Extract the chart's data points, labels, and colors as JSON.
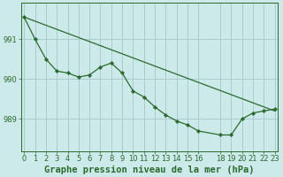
{
  "title": "Graphe pression niveau de la mer (hPa)",
  "background_color": "#cceaea",
  "grid_color": "#aacccc",
  "line_color": "#2d6a2d",
  "marker_color": "#2d6a2d",
  "trend_line": {
    "x": [
      0,
      23
    ],
    "y": [
      991.55,
      989.2
    ]
  },
  "wavy_line": {
    "x": [
      0,
      1,
      2,
      3,
      4,
      5,
      6,
      7,
      8,
      9,
      10,
      11,
      12,
      13,
      14,
      15,
      16,
      18,
      19,
      20,
      21,
      22,
      23
    ],
    "y": [
      991.55,
      991.0,
      990.5,
      990.2,
      990.15,
      990.05,
      990.1,
      990.3,
      990.4,
      990.15,
      989.7,
      989.55,
      989.3,
      989.1,
      988.95,
      988.85,
      988.7,
      988.6,
      988.6,
      989.0,
      989.15,
      989.2,
      989.25
    ]
  },
  "ylim": [
    988.2,
    991.9
  ],
  "yticks": [
    989,
    990,
    991
  ],
  "xticks": [
    0,
    1,
    2,
    3,
    4,
    5,
    6,
    7,
    8,
    9,
    10,
    11,
    12,
    13,
    14,
    15,
    16,
    18,
    19,
    20,
    21,
    22,
    23
  ],
  "xlim": [
    -0.3,
    23.3
  ],
  "title_fontsize": 7.5,
  "tick_fontsize": 6,
  "marker_size": 2.2,
  "line_width": 0.9
}
